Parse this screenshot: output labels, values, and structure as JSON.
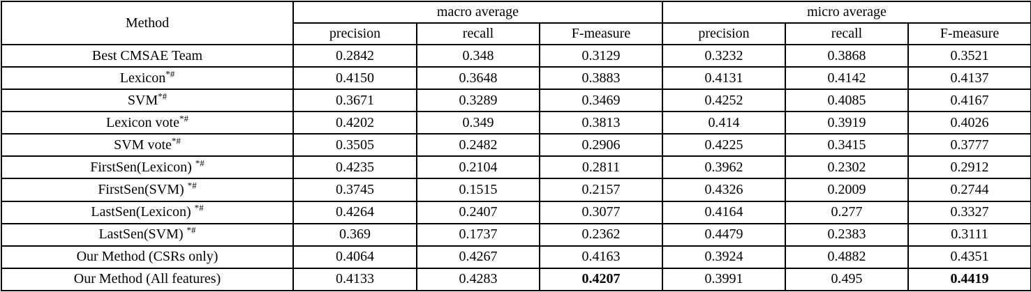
{
  "table": {
    "method_header": "Method",
    "group_headers": [
      "macro average",
      "micro average"
    ],
    "sub_headers": [
      "precision",
      "recall",
      "F-measure"
    ],
    "rows": [
      {
        "method": "Best CMSAE Team",
        "sup": "",
        "values": [
          "0.2842",
          "0.348",
          "0.3129",
          "0.3232",
          "0.3868",
          "0.3521"
        ]
      },
      {
        "method": "Lexicon",
        "sup": "*#",
        "values": [
          "0.4150",
          "0.3648",
          "0.3883",
          "0.4131",
          "0.4142",
          "0.4137"
        ]
      },
      {
        "method": "SVM",
        "sup": "*#",
        "values": [
          "0.3671",
          "0.3289",
          "0.3469",
          "0.4252",
          "0.4085",
          "0.4167"
        ]
      },
      {
        "method": "Lexicon vote",
        "sup": "*#",
        "values": [
          "0.4202",
          "0.349",
          "0.3813",
          "0.414",
          "0.3919",
          "0.4026"
        ]
      },
      {
        "method": "SVM vote",
        "sup": "*#",
        "values": [
          "0.3505",
          "0.2482",
          "0.2906",
          "0.4225",
          "0.3415",
          "0.3777"
        ]
      },
      {
        "method": "FirstSen(Lexicon) ",
        "sup": "*#",
        "values": [
          "0.4235",
          "0.2104",
          "0.2811",
          "0.3962",
          "0.2302",
          "0.2912"
        ]
      },
      {
        "method": "FirstSen(SVM) ",
        "sup": "*#",
        "values": [
          "0.3745",
          "0.1515",
          "0.2157",
          "0.4326",
          "0.2009",
          "0.2744"
        ]
      },
      {
        "method": "LastSen(Lexicon) ",
        "sup": "*#",
        "values": [
          "0.4264",
          "0.2407",
          "0.3077",
          "0.4164",
          "0.277",
          "0.3327"
        ]
      },
      {
        "method": "LastSen(SVM) ",
        "sup": "*#",
        "values": [
          "0.369",
          "0.1737",
          "0.2362",
          "0.4479",
          "0.2383",
          "0.3111"
        ]
      },
      {
        "method": "Our Method (CSRs only)",
        "sup": "",
        "values": [
          "0.4064",
          "0.4267",
          "0.4163",
          "0.3924",
          "0.4882",
          "0.4351"
        ]
      },
      {
        "method": "Our Method (All features)",
        "sup": "",
        "values": [
          "0.4133",
          "0.4283",
          "0.4207",
          "0.3991",
          "0.495",
          "0.4419"
        ],
        "bold_cols": [
          2,
          5
        ]
      }
    ]
  }
}
